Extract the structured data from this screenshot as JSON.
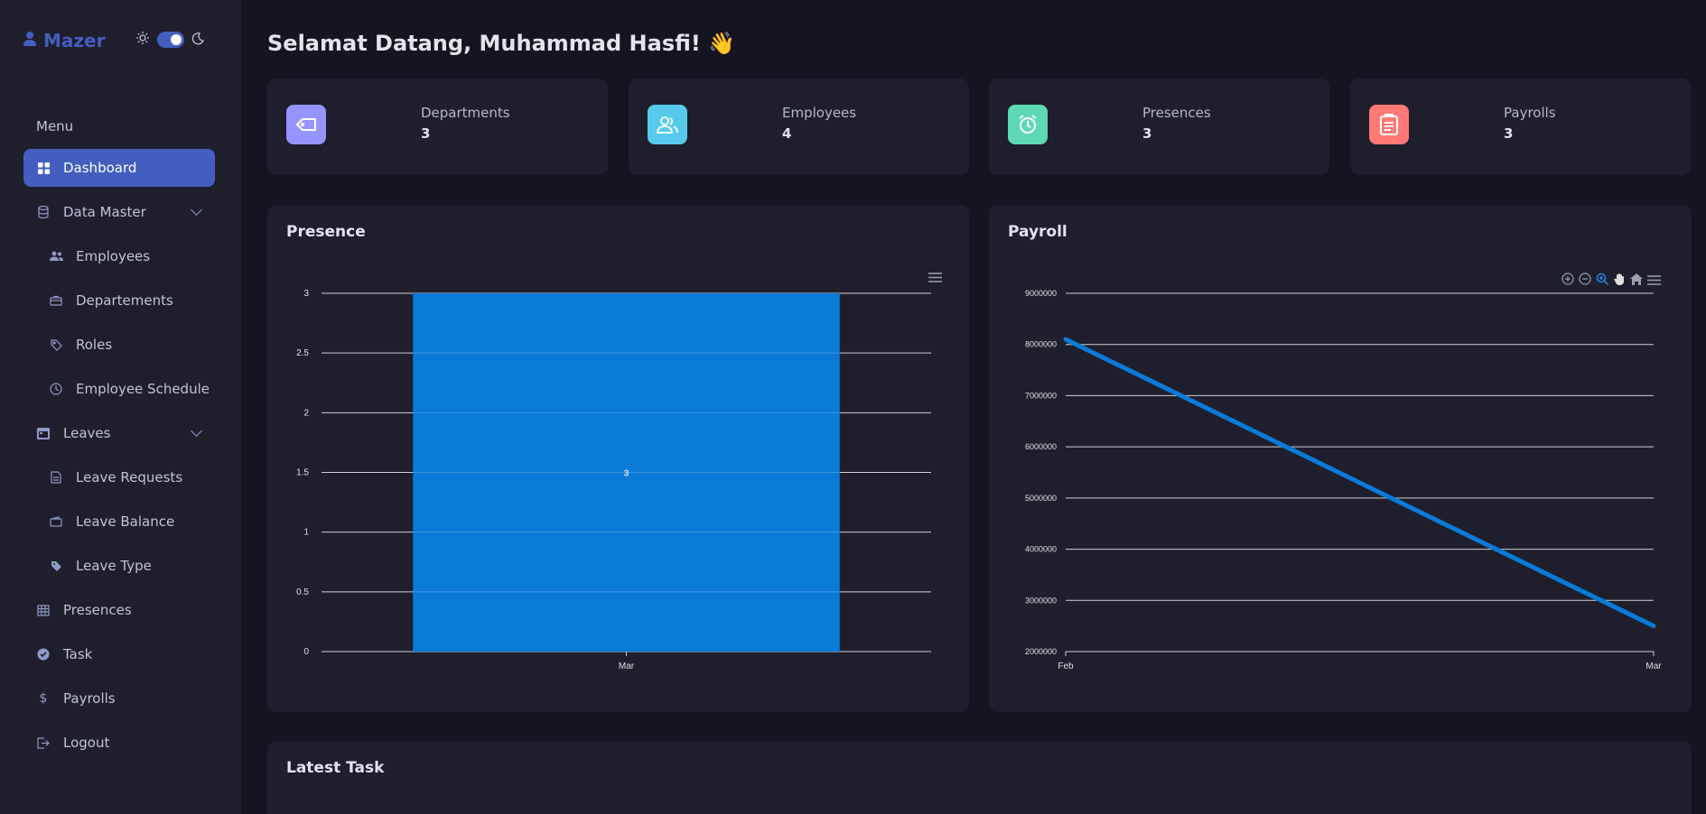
{
  "brand": {
    "name": "Mazer"
  },
  "sidebar": {
    "menu_title": "Menu",
    "items": [
      {
        "label": "Dashboard",
        "icon": "grid-icon",
        "active": true,
        "sub": false
      },
      {
        "label": "Data Master",
        "icon": "database-icon",
        "sub": false,
        "expandable": true
      },
      {
        "label": "Employees",
        "icon": "people-icon",
        "sub": true
      },
      {
        "label": "Departements",
        "icon": "briefcase-icon",
        "sub": true
      },
      {
        "label": "Roles",
        "icon": "tag-icon",
        "sub": true
      },
      {
        "label": "Employee Schedule",
        "icon": "clock-icon",
        "sub": true
      },
      {
        "label": "Leaves",
        "icon": "calendar-icon",
        "sub": false,
        "expandable": true
      },
      {
        "label": "Leave Requests",
        "icon": "file-icon",
        "sub": true
      },
      {
        "label": "Leave Balance",
        "icon": "wallet-icon",
        "sub": true
      },
      {
        "label": "Leave Type",
        "icon": "tag-fill-icon",
        "sub": true
      },
      {
        "label": "Presences",
        "icon": "table-icon",
        "sub": false
      },
      {
        "label": "Task",
        "icon": "check-circle-icon",
        "sub": false
      },
      {
        "label": "Payrolls",
        "icon": "dollar-icon",
        "sub": false
      },
      {
        "label": "Logout",
        "icon": "logout-icon",
        "sub": false
      }
    ]
  },
  "header": {
    "title": "Selamat Datang, Muhammad Hasfi! 👋"
  },
  "stats": [
    {
      "label": "Departments",
      "value": "3",
      "color": "#9694ff",
      "icon": "tag-icon"
    },
    {
      "label": "Employees",
      "value": "4",
      "color": "#57caeb",
      "icon": "people-icon"
    },
    {
      "label": "Presences",
      "value": "3",
      "color": "#5ddab4",
      "icon": "alarm-icon"
    },
    {
      "label": "Payrolls",
      "value": "3",
      "color": "#ff7976",
      "icon": "clipboard-icon"
    }
  ],
  "presence": {
    "title": "Presence"
  },
  "payroll": {
    "title": "Payroll"
  },
  "latest_task": {
    "title": "Latest Task"
  },
  "chart_data": [
    {
      "type": "bar",
      "title": "Presence",
      "categories": [
        "Mar"
      ],
      "values": [
        3
      ],
      "data_labels": [
        "3"
      ],
      "ylim": [
        0,
        3
      ],
      "yticks": [
        "0",
        "0.5",
        "1",
        "1.5",
        "2",
        "2.5",
        "3"
      ],
      "color": "#0a7ad8",
      "grid": true
    },
    {
      "type": "line",
      "title": "Payroll",
      "x": [
        "Feb",
        "Mar"
      ],
      "values": [
        8100000,
        2500000
      ],
      "ylim": [
        2000000,
        9000000
      ],
      "yticks": [
        "2000000",
        "3000000",
        "4000000",
        "5000000",
        "6000000",
        "7000000",
        "8000000",
        "9000000"
      ],
      "color": "#0a7ad8",
      "grid": true
    }
  ]
}
